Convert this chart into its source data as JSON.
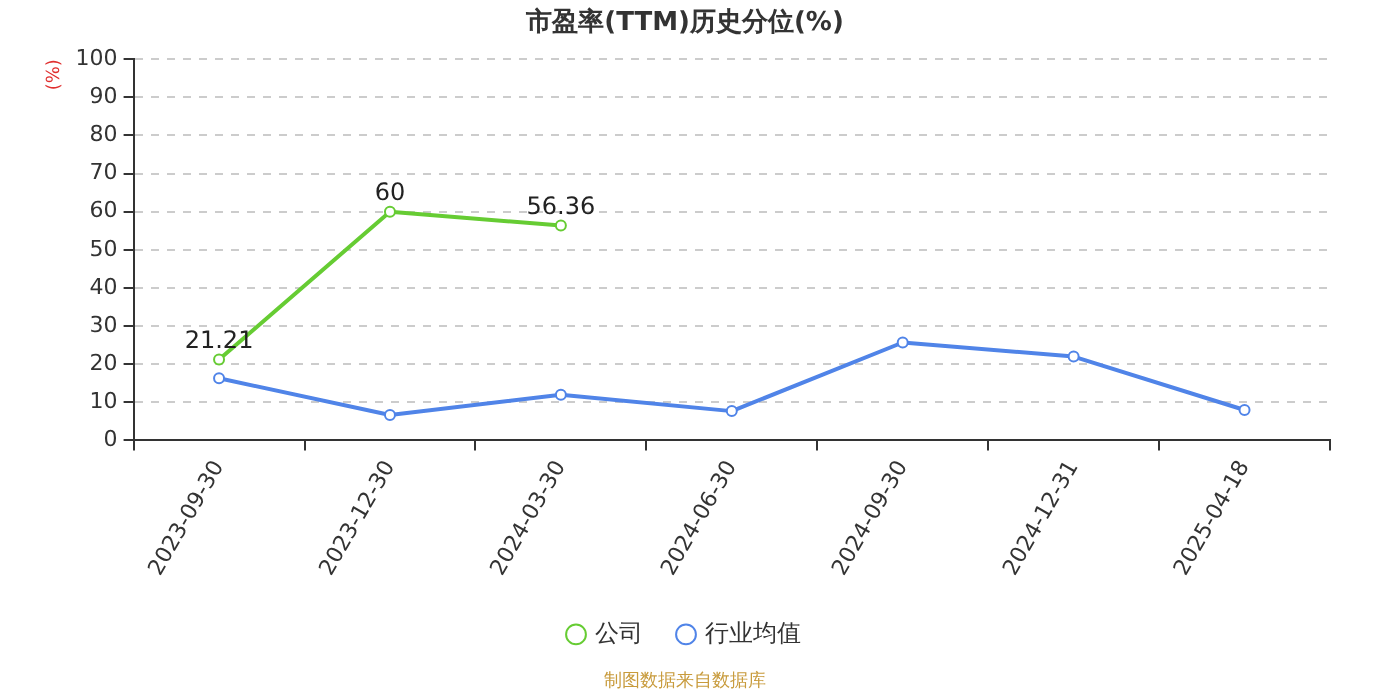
{
  "chart_data": {
    "type": "line",
    "title": "市盈率(TTM)历史分位(%)",
    "ylabel": "(%)",
    "categories": [
      "2023-09-30",
      "2023-12-30",
      "2024-03-30",
      "2024-06-30",
      "2024-09-30",
      "2024-12-31",
      "2025-04-18"
    ],
    "series": [
      {
        "name": "公司",
        "color": "#66cc33",
        "values": [
          21.21,
          60,
          56.36,
          null,
          null,
          null,
          null
        ],
        "value_labels": [
          "21.21",
          "60",
          "56.36",
          null,
          null,
          null,
          null
        ]
      },
      {
        "name": "行业均值",
        "color": "#5084e8",
        "values": [
          16.3,
          6.7,
          12,
          7.7,
          25.7,
          22,
          8
        ]
      }
    ],
    "ylim": [
      0,
      100
    ],
    "yticks": [
      0,
      10,
      20,
      30,
      40,
      50,
      60,
      70,
      80,
      90,
      100
    ],
    "grid": "y",
    "legend": "bottom",
    "marker": "circle",
    "line_style": "solid",
    "annotations": [
      "制图数据来自数据库"
    ]
  }
}
